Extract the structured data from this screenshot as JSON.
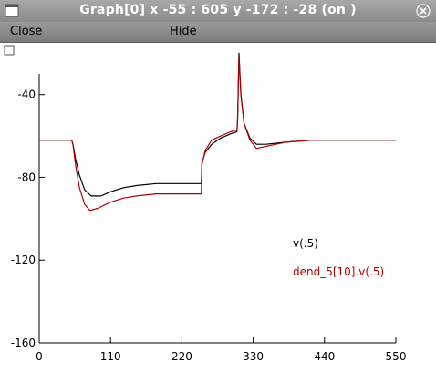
{
  "window": {
    "title": "Graph[0]  x -55 : 605  y -172 : -28 (on )"
  },
  "menu": {
    "close_label": "Close",
    "hide_label": "Hide"
  },
  "colors": {
    "series_black": "#000000",
    "series_red": "#b00000"
  },
  "icons": [
    "window-menu-icon",
    "close-icon",
    "plot-checkbox-icon"
  ],
  "chart_data": {
    "type": "line",
    "title": "",
    "xlabel": "",
    "ylabel": "",
    "xlim": [
      0,
      550
    ],
    "ylim": [
      -160,
      -30
    ],
    "x_ticks": [
      0,
      110,
      220,
      330,
      440,
      550
    ],
    "y_ticks": [
      -40,
      -80,
      -120,
      -160
    ],
    "grid": false,
    "series": [
      {
        "name": "v(.5)",
        "color": "#000000",
        "points": [
          [
            0,
            -62
          ],
          [
            50,
            -62
          ],
          [
            52,
            -64
          ],
          [
            56,
            -71
          ],
          [
            62,
            -79
          ],
          [
            70,
            -86
          ],
          [
            80,
            -89
          ],
          [
            95,
            -89
          ],
          [
            110,
            -87
          ],
          [
            130,
            -85
          ],
          [
            150,
            -84
          ],
          [
            180,
            -83
          ],
          [
            250,
            -83
          ],
          [
            251,
            -73
          ],
          [
            256,
            -68
          ],
          [
            266,
            -64
          ],
          [
            280,
            -61
          ],
          [
            295,
            -59
          ],
          [
            305,
            -58
          ],
          [
            306,
            -52
          ],
          [
            308,
            -20
          ],
          [
            311,
            -40
          ],
          [
            316,
            -54
          ],
          [
            325,
            -61
          ],
          [
            335,
            -64
          ],
          [
            350,
            -64
          ],
          [
            380,
            -63
          ],
          [
            420,
            -62
          ],
          [
            440,
            -62
          ],
          [
            550,
            -62
          ]
        ]
      },
      {
        "name": "dend_5[10].v(.5)",
        "color": "#b00000",
        "points": [
          [
            0,
            -62
          ],
          [
            50,
            -62
          ],
          [
            52,
            -64
          ],
          [
            56,
            -74
          ],
          [
            62,
            -85
          ],
          [
            70,
            -93
          ],
          [
            78,
            -96
          ],
          [
            90,
            -95
          ],
          [
            110,
            -92
          ],
          [
            130,
            -90
          ],
          [
            150,
            -89
          ],
          [
            180,
            -88
          ],
          [
            250,
            -88
          ],
          [
            251,
            -74
          ],
          [
            256,
            -67
          ],
          [
            266,
            -62
          ],
          [
            280,
            -60
          ],
          [
            295,
            -58
          ],
          [
            305,
            -57
          ],
          [
            306,
            -52
          ],
          [
            308,
            -22
          ],
          [
            311,
            -40
          ],
          [
            316,
            -54
          ],
          [
            325,
            -62
          ],
          [
            335,
            -66
          ],
          [
            350,
            -65
          ],
          [
            380,
            -63
          ],
          [
            420,
            -62
          ],
          [
            440,
            -62
          ],
          [
            550,
            -62
          ]
        ]
      }
    ]
  }
}
